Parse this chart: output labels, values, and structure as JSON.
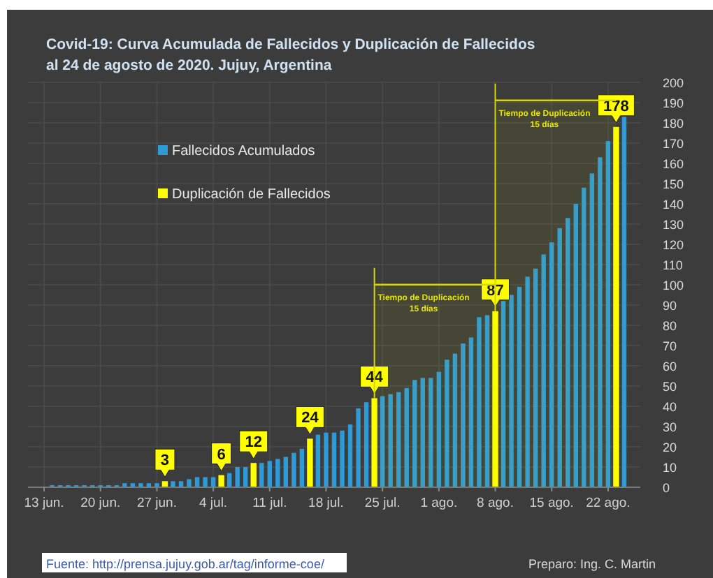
{
  "chart_data": {
    "type": "bar",
    "title": "Covid-19: Curva Acumulada de Fallecidos y Duplicación de Fallecidos\nal 24 de agosto de  2020. Jujuy, Argentina",
    "series": [
      {
        "name": "Fallecidos Acumulados",
        "color": "#2e9bd8",
        "x": [
          "2020-06-14",
          "2020-06-15",
          "2020-06-16",
          "2020-06-17",
          "2020-06-18",
          "2020-06-19",
          "2020-06-20",
          "2020-06-21",
          "2020-06-22",
          "2020-06-23",
          "2020-06-24",
          "2020-06-25",
          "2020-06-26",
          "2020-06-27",
          "2020-06-29",
          "2020-06-30",
          "2020-07-01",
          "2020-07-02",
          "2020-07-03",
          "2020-07-04",
          "2020-07-06",
          "2020-07-07",
          "2020-07-08",
          "2020-07-10",
          "2020-07-11",
          "2020-07-12",
          "2020-07-13",
          "2020-07-14",
          "2020-07-15",
          "2020-07-17",
          "2020-07-18",
          "2020-07-19",
          "2020-07-20",
          "2020-07-21",
          "2020-07-22",
          "2020-07-23",
          "2020-07-25",
          "2020-07-26",
          "2020-07-27",
          "2020-07-28",
          "2020-07-29",
          "2020-07-30",
          "2020-07-31",
          "2020-08-01",
          "2020-08-02",
          "2020-08-03",
          "2020-08-04",
          "2020-08-05",
          "2020-08-06",
          "2020-08-07",
          "2020-08-09",
          "2020-08-10",
          "2020-08-11",
          "2020-08-12",
          "2020-08-13",
          "2020-08-14",
          "2020-08-15",
          "2020-08-16",
          "2020-08-17",
          "2020-08-18",
          "2020-08-19",
          "2020-08-20",
          "2020-08-21",
          "2020-08-22",
          "2020-08-24"
        ],
        "values": [
          1,
          1,
          1,
          1,
          1,
          1,
          1,
          1,
          1,
          2,
          2,
          2,
          2,
          2,
          3,
          3,
          4,
          5,
          5,
          5,
          7,
          10,
          10,
          12,
          13,
          14,
          15,
          17,
          19,
          26,
          27,
          27,
          28,
          31,
          39,
          42,
          45,
          46,
          47,
          49,
          53,
          54,
          54,
          57,
          63,
          66,
          71,
          74,
          84,
          85,
          92,
          95,
          99,
          104,
          108,
          115,
          121,
          128,
          133,
          140,
          148,
          155,
          163,
          171,
          183
        ]
      },
      {
        "name": "Duplicación de Fallecidos",
        "color": "#ffff00",
        "x": [
          "2020-06-28",
          "2020-07-05",
          "2020-07-09",
          "2020-07-16",
          "2020-07-24",
          "2020-08-08",
          "2020-08-23"
        ],
        "values": [
          3,
          6,
          12,
          24,
          44,
          87,
          178
        ],
        "value_labels": [
          "3",
          "6",
          "12",
          "24",
          "44",
          "87",
          "178"
        ]
      }
    ],
    "xlim": [
      "2020-06-11",
      "2020-08-26"
    ],
    "xticks": [
      {
        "value": "2020-06-13",
        "label": "13 jun."
      },
      {
        "value": "2020-06-20",
        "label": "20 jun."
      },
      {
        "value": "2020-06-27",
        "label": "27 jun."
      },
      {
        "value": "2020-07-04",
        "label": "4 jul."
      },
      {
        "value": "2020-07-11",
        "label": "11 jul."
      },
      {
        "value": "2020-07-18",
        "label": "18 jul."
      },
      {
        "value": "2020-07-25",
        "label": "25 jul."
      },
      {
        "value": "2020-08-01",
        "label": "1 ago."
      },
      {
        "value": "2020-08-08",
        "label": "8 ago."
      },
      {
        "value": "2020-08-15",
        "label": "15 ago."
      },
      {
        "value": "2020-08-22",
        "label": "22 ago."
      }
    ],
    "ylim": [
      0,
      200
    ],
    "yticks": [
      0,
      10,
      20,
      30,
      40,
      50,
      60,
      70,
      80,
      90,
      100,
      110,
      120,
      130,
      140,
      150,
      160,
      170,
      180,
      190,
      200
    ],
    "grid": true,
    "legend": "top left",
    "bands": [
      {
        "axis": "x",
        "from": "2020-07-24",
        "to": "2020-08-08",
        "label": "Tiempo de Duplicación\n15 días",
        "color": "#d6d600"
      },
      {
        "axis": "x",
        "from": "2020-08-08",
        "to": "2020-08-23",
        "label": "Tiempo de Duplicación\n15 días",
        "color": "#d6d600"
      }
    ],
    "annotations": [
      "Fuente: http://prensa.jujuy.gob.ar/tag/informe-coe/",
      "Preparo: Ing. C. Martin"
    ]
  }
}
